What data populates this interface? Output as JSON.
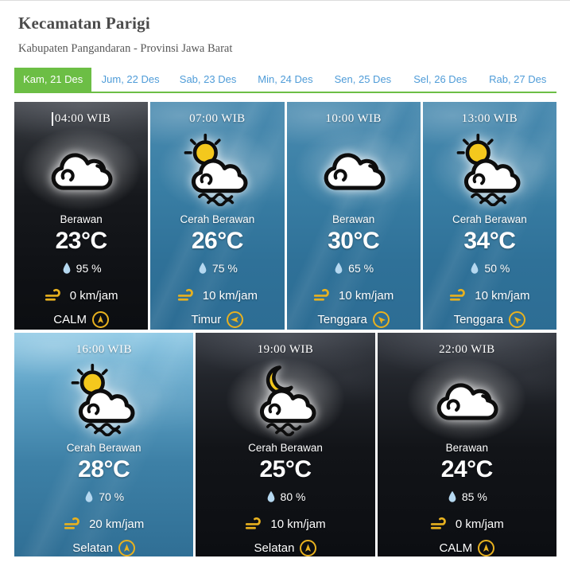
{
  "header": {
    "title": "Kecamatan Parigi",
    "subtitle": "Kabupaten Pangandaran - Provinsi Jawa Barat"
  },
  "tabs": [
    {
      "label": "Kam, 21 Des",
      "active": true
    },
    {
      "label": "Jum, 22 Des",
      "active": false
    },
    {
      "label": "Sab, 23 Des",
      "active": false
    },
    {
      "label": "Min, 24 Des",
      "active": false
    },
    {
      "label": "Sen, 25 Des",
      "active": false
    },
    {
      "label": "Sel, 26 Des",
      "active": false
    },
    {
      "label": "Rab, 27 Des",
      "active": false
    }
  ],
  "forecast": [
    {
      "time": "04:00 WIB",
      "condition": "Berawan",
      "temperature": "23°C",
      "humidity": "95 %",
      "wind_speed": "0 km/jam",
      "wind_direction": "CALM",
      "icon": "cloud",
      "theme": "night-early",
      "arrow_deg": 0,
      "row": 1,
      "has_caret": true
    },
    {
      "time": "07:00 WIB",
      "condition": "Cerah Berawan",
      "temperature": "26°C",
      "humidity": "75 %",
      "wind_speed": "10 km/jam",
      "wind_direction": "Timur",
      "icon": "sun-cloud",
      "theme": "day",
      "arrow_deg": 270,
      "row": 1,
      "has_caret": false
    },
    {
      "time": "10:00 WIB",
      "condition": "Berawan",
      "temperature": "30°C",
      "humidity": "65 %",
      "wind_speed": "10 km/jam",
      "wind_direction": "Tenggara",
      "icon": "cloud",
      "theme": "day",
      "arrow_deg": 315,
      "row": 1,
      "has_caret": false
    },
    {
      "time": "13:00 WIB",
      "condition": "Cerah Berawan",
      "temperature": "34°C",
      "humidity": "50 %",
      "wind_speed": "10 km/jam",
      "wind_direction": "Tenggara",
      "icon": "sun-cloud",
      "theme": "day",
      "arrow_deg": 315,
      "row": 1,
      "has_caret": false
    },
    {
      "time": "16:00 WIB",
      "condition": "Cerah Berawan",
      "temperature": "28°C",
      "humidity": "70 %",
      "wind_speed": "20 km/jam",
      "wind_direction": "Selatan",
      "icon": "sun-cloud",
      "theme": "day-bright",
      "arrow_deg": 0,
      "row": 2,
      "has_caret": false
    },
    {
      "time": "19:00 WIB",
      "condition": "Cerah Berawan",
      "temperature": "25°C",
      "humidity": "80 %",
      "wind_speed": "10 km/jam",
      "wind_direction": "Selatan",
      "icon": "moon-cloud",
      "theme": "night",
      "arrow_deg": 0,
      "row": 2,
      "has_caret": false
    },
    {
      "time": "22:00 WIB",
      "condition": "Berawan",
      "temperature": "24°C",
      "humidity": "85 %",
      "wind_speed": "0 km/jam",
      "wind_direction": "CALM",
      "icon": "cloud",
      "theme": "night",
      "arrow_deg": 0,
      "row": 2,
      "has_caret": false
    }
  ],
  "colors": {
    "accent_green": "#6cbe45",
    "tab_blue": "#4f9cd8",
    "gold": "#e8b11f",
    "droplet_blue": "#b5d8f0",
    "title_gray": "#4b4b4b"
  }
}
